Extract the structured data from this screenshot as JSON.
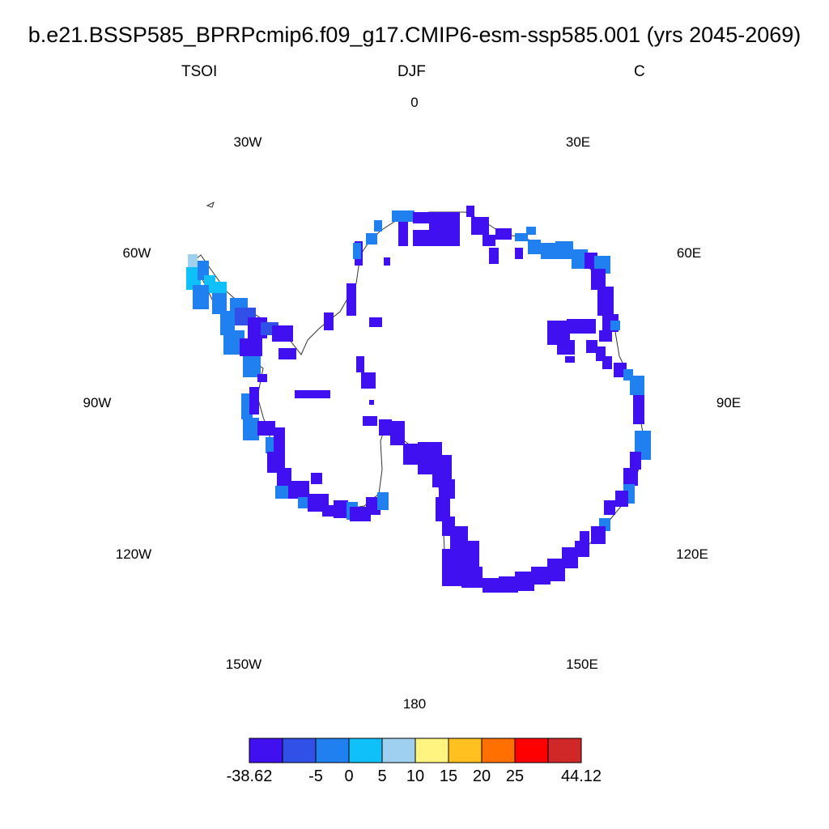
{
  "header": {
    "title": "b.e21.BSSP585_BPRPcmip6.f09_g17.CMIP6-esm-ssp585.001 (yrs 2045-2069)",
    "variable": "TSOI",
    "season": "DJF",
    "units": "C"
  },
  "map": {
    "projection": "south-polar-stereographic",
    "longitude_labels": {
      "lon_0": "0",
      "lon_30e": "30E",
      "lon_60e": "60E",
      "lon_90e": "90E",
      "lon_120e": "120E",
      "lon_150e": "150E",
      "lon_180": "180",
      "lon_150w": "150W",
      "lon_120w": "120W",
      "lon_90w": "90W",
      "lon_60w": "60W",
      "lon_30w": "30W"
    },
    "dominant_color": "#4010f0",
    "colors_present": [
      "#4010f0",
      "#3050e8",
      "#2080f0",
      "#10c0f8",
      "#a0d0f0"
    ]
  },
  "colorbar": {
    "colors": [
      "#4010f0",
      "#3050e8",
      "#2080f0",
      "#10c0f8",
      "#a0d0f0",
      "#fff480",
      "#ffc020",
      "#ff7000",
      "#ff0000",
      "#d02828"
    ],
    "labels": [
      "-38.62",
      "-5",
      "0",
      "5",
      "10",
      "15",
      "20",
      "25",
      "44.12"
    ]
  }
}
